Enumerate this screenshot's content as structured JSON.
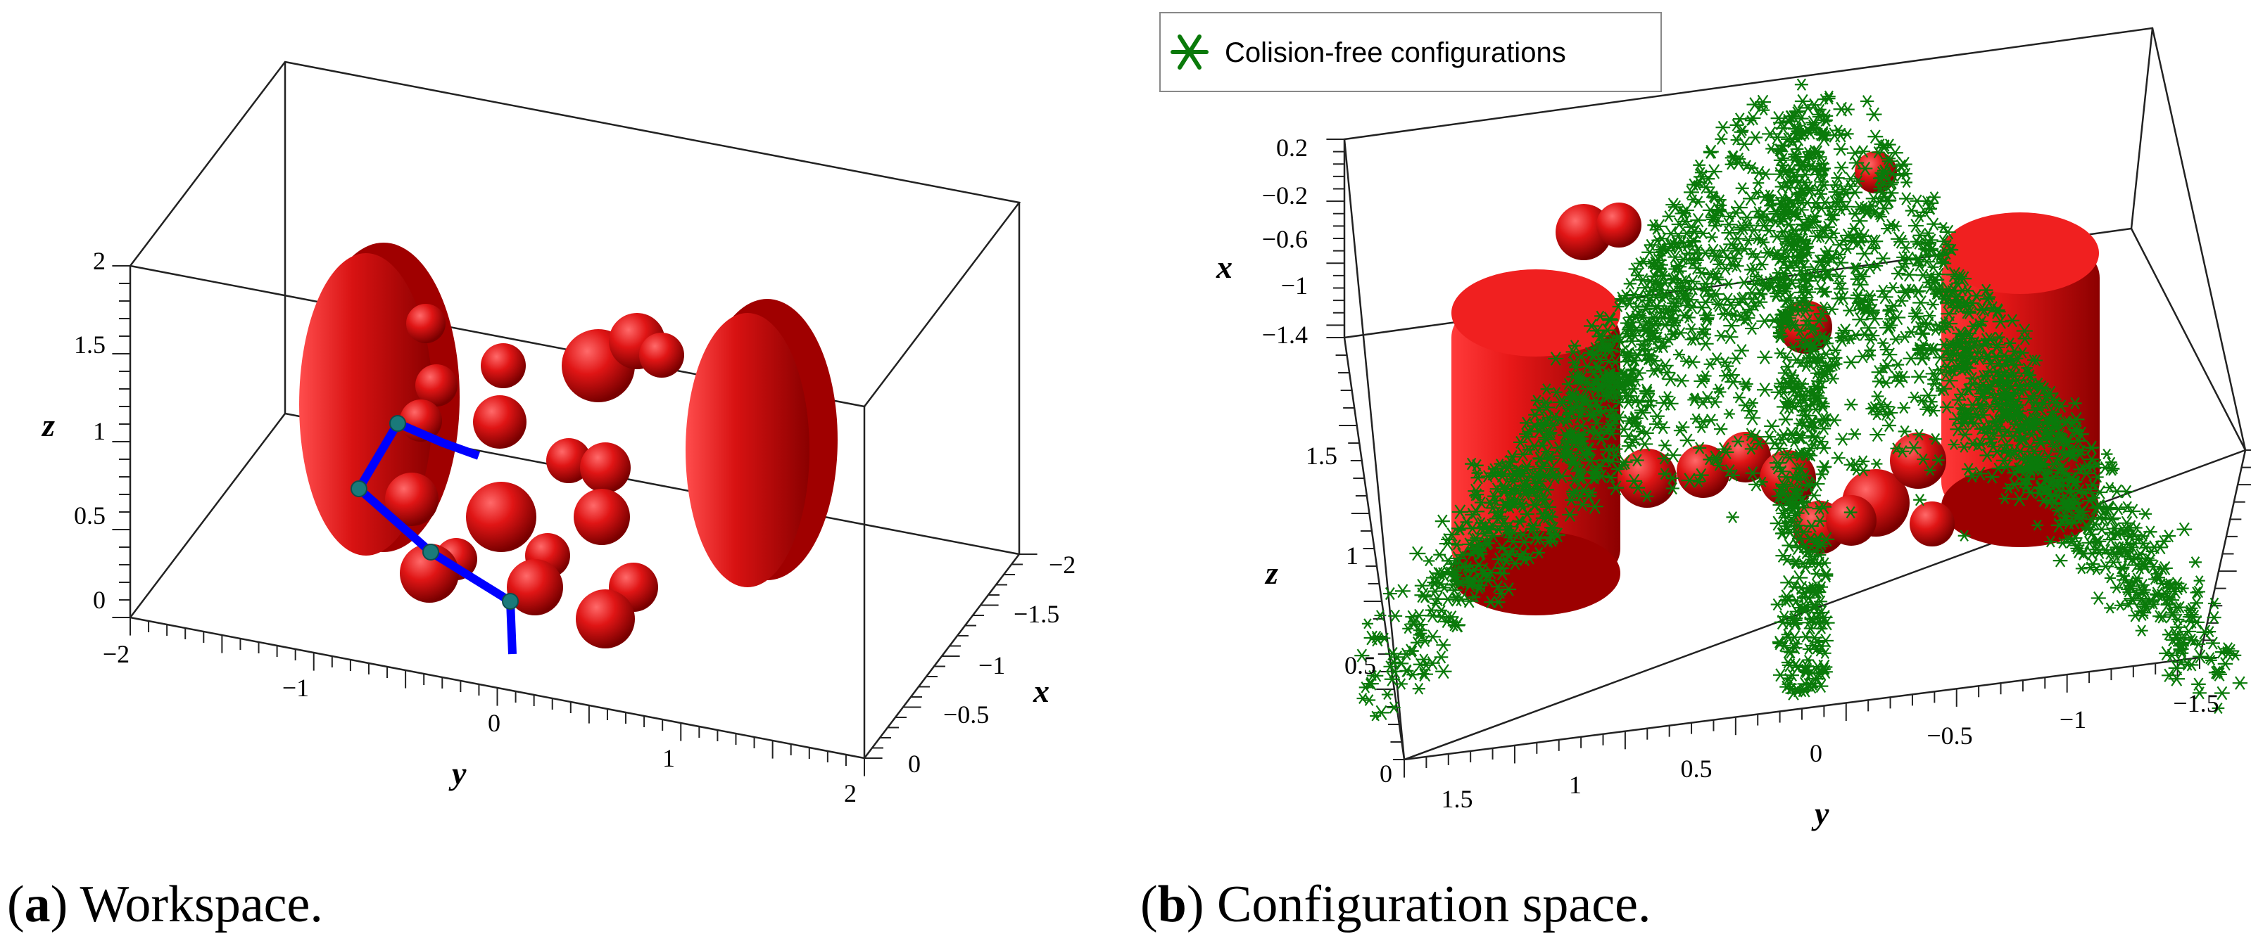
{
  "chart_data": [
    {
      "type": "scatter",
      "panel_letter": "a",
      "caption": "Workspace.",
      "axes": {
        "x": {
          "label": "x",
          "ticks": [
            "−2",
            "−1.5",
            "−1",
            "−0.5",
            "0"
          ],
          "range": [
            -2,
            0
          ]
        },
        "y": {
          "label": "y",
          "ticks": [
            "−2",
            "−1",
            "0",
            "1",
            "2"
          ],
          "range": [
            -2,
            2
          ]
        },
        "z": {
          "label": "z",
          "ticks": [
            "0",
            "0.5",
            "1",
            "1.5",
            "2"
          ],
          "range": [
            0,
            2
          ]
        }
      },
      "colors": {
        "obstacles": "#d41010",
        "robot_links": "#0000ff",
        "robot_joints": "#1a7a7a"
      },
      "obstacles": {
        "discs": [
          {
            "y": -1.4,
            "x": -1.0,
            "z": 1.2,
            "label": "disc-left"
          },
          {
            "y": 1.2,
            "x": -1.0,
            "z": 1.0,
            "label": "disc-right"
          }
        ],
        "spheres": [
          {
            "y": -0.6,
            "z": 1.7
          },
          {
            "y": -0.3,
            "z": 1.5
          },
          {
            "y": 0.2,
            "z": 1.45
          },
          {
            "y": 0.05,
            "z": 1.15
          },
          {
            "y": 0.85,
            "z": 1.6
          },
          {
            "y": 1.0,
            "z": 1.75
          },
          {
            "y": 0.55,
            "z": 0.9
          },
          {
            "y": 0.75,
            "z": 0.85
          },
          {
            "y": -0.3,
            "z": 0.75
          },
          {
            "y": 0.1,
            "z": 0.6
          },
          {
            "y": 0.8,
            "z": 0.55
          },
          {
            "y": -0.2,
            "z": 0.3
          },
          {
            "y": 0.35,
            "z": 0.35
          },
          {
            "y": 0.2,
            "z": 0.2
          },
          {
            "y": 0.9,
            "z": 0.15
          },
          {
            "y": 0.95,
            "z": 0.0
          }
        ]
      },
      "robot_joints": [
        {
          "y": -0.7,
          "z": 1.1
        },
        {
          "y": -0.9,
          "z": 0.75
        },
        {
          "y": -0.6,
          "z": 0.4
        },
        {
          "y": 0.0,
          "z": 0.1
        }
      ]
    },
    {
      "type": "scatter",
      "panel_letter": "b",
      "caption": "Configuration space.",
      "legend": {
        "entries": [
          "Colision-free configurations"
        ],
        "position": "top-left"
      },
      "axes": {
        "x": {
          "label": "x",
          "ticks": [
            "0.2",
            "−0.2",
            "−0.6",
            "−1",
            "−1.4"
          ],
          "range": [
            -1.4,
            0.2
          ]
        },
        "y": {
          "label": "y",
          "ticks": [
            "1.5",
            "1",
            "0.5",
            "0",
            "−0.5",
            "−1",
            "−1.5"
          ],
          "range": [
            -1.8,
            1.8
          ]
        },
        "z": {
          "label": "z",
          "ticks": [
            "0",
            "0.5",
            "1",
            "1.5"
          ],
          "range": [
            0,
            1.8
          ]
        }
      },
      "colors": {
        "collision_free": "#0a7a0a",
        "obstacles": "#d41010"
      },
      "series": [
        {
          "name": "Colision-free configurations",
          "marker": "asterisk",
          "approx_count": 3000
        }
      ]
    }
  ]
}
